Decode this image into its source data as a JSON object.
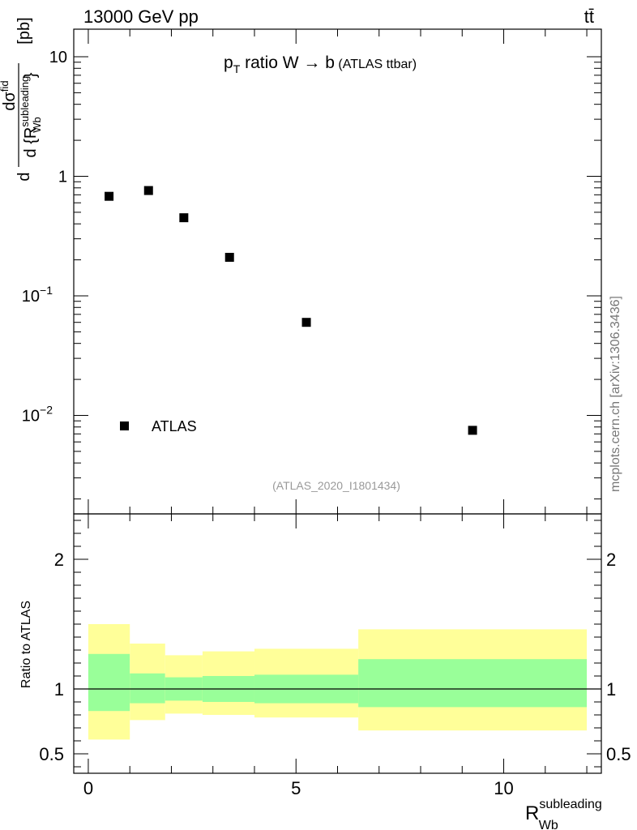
{
  "header": {
    "energy_label": "13000 GeV pp",
    "process_label": "tt̄",
    "plot_title_main": "p",
    "plot_title_sub": "T",
    "plot_title_rest": " ratio W → b",
    "plot_title_paren": " (ATLAS ttbar)",
    "analysis_id": "(ATLAS_2020_I1801434)",
    "side_credit": "mcplots.cern.ch [arXiv:1306.3436]"
  },
  "chart_data": [
    {
      "type": "scatter",
      "panel": "main",
      "ylabel": "dσ / d{R_Wb^subleading} [pb]",
      "ylabel_unit": "[pb]",
      "yscale": "log",
      "ylim": [
        0.0015,
        17
      ],
      "xlim": [
        -0.35,
        12.35
      ],
      "y_ticks": [
        {
          "value": 10,
          "label": "10"
        },
        {
          "value": 1,
          "label": "1"
        },
        {
          "value": 0.1,
          "label": "10",
          "exp": "−1"
        },
        {
          "value": 0.01,
          "label": "10",
          "exp": "−2"
        }
      ],
      "legend": {
        "placement": "lower-left",
        "entries": [
          "ATLAS"
        ]
      },
      "series": [
        {
          "name": "ATLAS",
          "color": "#000000",
          "marker": "square",
          "x": [
            0.5,
            1.45,
            2.3,
            3.4,
            5.25,
            9.25
          ],
          "y": [
            0.68,
            0.76,
            0.45,
            0.21,
            0.06,
            0.0075
          ]
        }
      ]
    },
    {
      "type": "area",
      "panel": "ratio",
      "ylabel": "Ratio to ATLAS",
      "xlabel": "R",
      "xlabel_sup": "subleading",
      "xlabel_sub": "Wb",
      "ylim": [
        0.35,
        2.35
      ],
      "xlim": [
        -0.35,
        12.35
      ],
      "x_ticks": [
        {
          "value": 0,
          "label": "0"
        },
        {
          "value": 5,
          "label": "5"
        },
        {
          "value": 10,
          "label": "10"
        }
      ],
      "y_ticks": [
        {
          "value": 2,
          "label": "2"
        },
        {
          "value": 1,
          "label": "1"
        },
        {
          "value": 0.5,
          "label": "0.5"
        }
      ],
      "reference_line": 1,
      "bins": [
        {
          "lo": 0.0,
          "hi": 1.0,
          "inner": [
            0.83,
            1.27
          ],
          "outer": [
            0.61,
            1.5
          ]
        },
        {
          "lo": 1.0,
          "hi": 1.85,
          "inner": [
            0.89,
            1.12
          ],
          "outer": [
            0.76,
            1.35
          ]
        },
        {
          "lo": 1.85,
          "hi": 2.75,
          "inner": [
            0.91,
            1.09
          ],
          "outer": [
            0.81,
            1.26
          ]
        },
        {
          "lo": 2.75,
          "hi": 4.0,
          "inner": [
            0.9,
            1.1
          ],
          "outer": [
            0.8,
            1.29
          ]
        },
        {
          "lo": 4.0,
          "hi": 6.5,
          "inner": [
            0.89,
            1.11
          ],
          "outer": [
            0.78,
            1.31
          ]
        },
        {
          "lo": 6.5,
          "hi": 12.0,
          "inner": [
            0.86,
            1.23
          ],
          "outer": [
            0.68,
            1.46
          ]
        }
      ],
      "colors": {
        "inner": "#99ff99",
        "outer": "#ffff99"
      }
    }
  ]
}
